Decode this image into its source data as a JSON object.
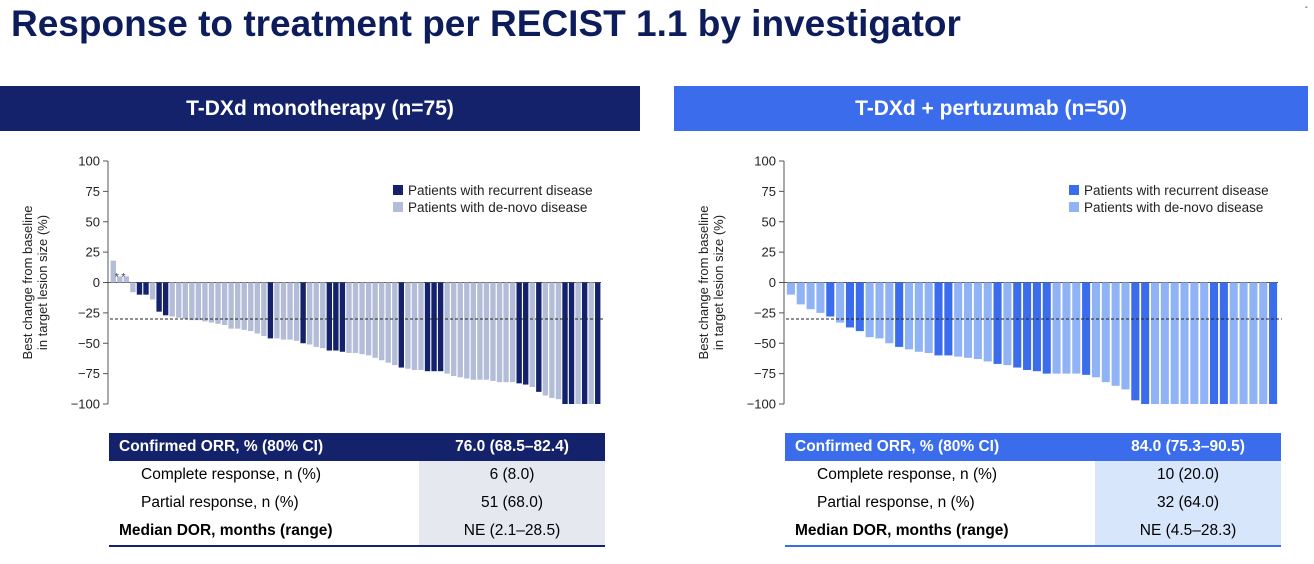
{
  "title": "Response to treatment per RECIST 1.1 by investigator",
  "corner_mark": "-",
  "colors": {
    "left_banner": "#13226a",
    "right_banner": "#3a6cec",
    "left_recurrent": "#13226a",
    "left_denovo": "#b4bdd8",
    "right_recurrent": "#3a6cec",
    "right_denovo": "#8fb3f4"
  },
  "panels": [
    {
      "id": "left",
      "banner": "T-DXd monotherapy (n=75)",
      "table": {
        "rows": [
          {
            "label": "Confirmed ORR, % (80% CI)",
            "value": "76.0 (68.5–82.4)"
          },
          {
            "label": "Complete response, n (%)",
            "value": "6 (8.0)"
          },
          {
            "label": "Partial response, n (%)",
            "value": "51 (68.0)"
          },
          {
            "label": "Median DOR, months (range)",
            "value": "NE (2.1–28.5)"
          }
        ]
      }
    },
    {
      "id": "right",
      "banner": "T-DXd + pertuzumab (n=50)",
      "table": {
        "rows": [
          {
            "label": "Confirmed ORR, % (80% CI)",
            "value": "84.0 (75.3–90.5)"
          },
          {
            "label": "Complete response, n (%)",
            "value": "10 (20.0)"
          },
          {
            "label": "Partial response, n (%)",
            "value": "32 (64.0)"
          },
          {
            "label": "Median DOR, months (range)",
            "value": "NE (4.5–28.3)"
          }
        ]
      }
    }
  ],
  "chart_data": [
    {
      "type": "bar",
      "title": "T-DXd monotherapy (n=75)",
      "xlabel": "",
      "ylabel": "Best change from baseline in target lesion size (%)",
      "ylim": [
        -100,
        100
      ],
      "yticks": [
        "100",
        "75",
        "50",
        "25",
        "0",
        "−25",
        "−50",
        "−75",
        "−100"
      ],
      "reference_line": -30,
      "legend": [
        "Patients with recurrent disease",
        "Patients with de-novo disease"
      ],
      "annotations": [
        "*",
        "*"
      ],
      "values": [
        18,
        5,
        5,
        -8,
        -10,
        -10,
        -14,
        -24,
        -27,
        -28,
        -29,
        -30,
        -31,
        -31,
        -32,
        -33,
        -34,
        -35,
        -38,
        -38,
        -39,
        -40,
        -42,
        -44,
        -46,
        -46,
        -47,
        -47,
        -48,
        -50,
        -51,
        -53,
        -54,
        -56,
        -56,
        -57,
        -58,
        -58,
        -59,
        -60,
        -62,
        -64,
        -66,
        -68,
        -70,
        -71,
        -72,
        -72,
        -73,
        -73,
        -73,
        -75,
        -77,
        -78,
        -79,
        -80,
        -80,
        -80,
        -81,
        -82,
        -82,
        -82,
        -83,
        -84,
        -86,
        -90,
        -93,
        -95,
        -96,
        -100,
        -100,
        -100,
        -100,
        -100,
        -100
      ],
      "groups": [
        "dn",
        "dn",
        "dn",
        "dn",
        "rc",
        "rc",
        "dn",
        "rc",
        "rc",
        "dn",
        "dn",
        "dn",
        "dn",
        "dn",
        "dn",
        "dn",
        "dn",
        "dn",
        "dn",
        "dn",
        "dn",
        "dn",
        "dn",
        "dn",
        "rc",
        "dn",
        "dn",
        "dn",
        "dn",
        "rc",
        "dn",
        "dn",
        "dn",
        "rc",
        "rc",
        "rc",
        "dn",
        "dn",
        "dn",
        "dn",
        "dn",
        "dn",
        "dn",
        "dn",
        "rc",
        "dn",
        "dn",
        "dn",
        "rc",
        "rc",
        "rc",
        "dn",
        "dn",
        "dn",
        "dn",
        "dn",
        "dn",
        "dn",
        "dn",
        "dn",
        "dn",
        "dn",
        "rc",
        "rc",
        "dn",
        "rc",
        "dn",
        "dn",
        "dn",
        "rc",
        "rc",
        "dn",
        "rc",
        "dn",
        "rc"
      ]
    },
    {
      "type": "bar",
      "title": "T-DXd + pertuzumab (n=50)",
      "xlabel": "",
      "ylabel": "Best change from baseline in target lesion size (%)",
      "ylim": [
        -100,
        100
      ],
      "yticks": [
        "100",
        "75",
        "50",
        "25",
        "0",
        "−25",
        "−50",
        "−75",
        "−100"
      ],
      "reference_line": -30,
      "legend": [
        "Patients with recurrent disease",
        "Patients with de-novo disease"
      ],
      "values": [
        -10,
        -18,
        -22,
        -25,
        -28,
        -33,
        -37,
        -40,
        -45,
        -46,
        -50,
        -53,
        -55,
        -57,
        -58,
        -60,
        -60,
        -61,
        -62,
        -63,
        -65,
        -67,
        -68,
        -70,
        -72,
        -73,
        -75,
        -75,
        -75,
        -75,
        -76,
        -78,
        -82,
        -85,
        -88,
        -97,
        -100,
        -100,
        -100,
        -100,
        -100,
        -100,
        -100,
        -100,
        -100,
        -100,
        -100,
        -100,
        -100,
        -100
      ],
      "groups": [
        "dn",
        "dn",
        "dn",
        "dn",
        "rc",
        "dn",
        "rc",
        "rc",
        "dn",
        "dn",
        "dn",
        "rc",
        "dn",
        "dn",
        "dn",
        "rc",
        "rc",
        "dn",
        "dn",
        "dn",
        "dn",
        "rc",
        "dn",
        "rc",
        "rc",
        "rc",
        "rc",
        "dn",
        "dn",
        "dn",
        "rc",
        "dn",
        "dn",
        "dn",
        "dn",
        "rc",
        "rc",
        "dn",
        "dn",
        "dn",
        "dn",
        "dn",
        "dn",
        "rc",
        "rc",
        "dn",
        "dn",
        "dn",
        "dn",
        "rc"
      ]
    }
  ]
}
